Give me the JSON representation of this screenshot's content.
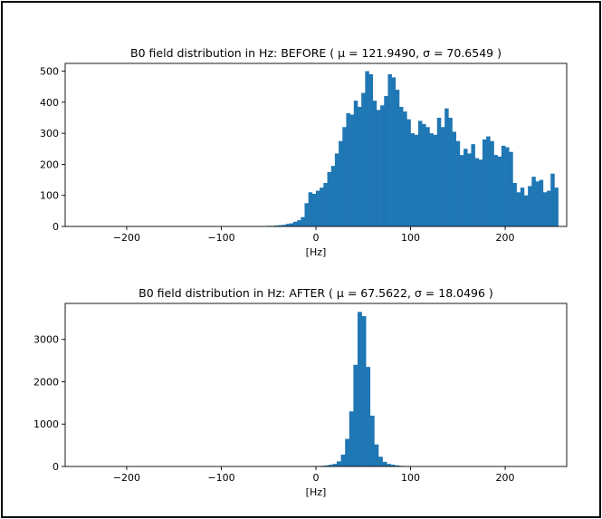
{
  "chart_data": [
    {
      "type": "bar",
      "title": "B0 field distribution in Hz: BEFORE ( μ = 121.9490, σ = 70.6549 )",
      "xlabel": "[Hz]",
      "ylabel": "",
      "xlim": [
        -265,
        265
      ],
      "ylim": [
        0,
        525
      ],
      "xticks": [
        -200,
        -100,
        0,
        100,
        200
      ],
      "xtick_labels": [
        "−200",
        "−100",
        "0",
        "100",
        "200"
      ],
      "yticks": [
        0,
        100,
        200,
        300,
        400,
        500
      ],
      "ytick_labels": [
        "0",
        "100",
        "200",
        "300",
        "400",
        "500"
      ],
      "color": "#1f77b4",
      "bin_width": 4,
      "bin_start": -60,
      "values": [
        1,
        1,
        2,
        2,
        3,
        4,
        5,
        8,
        10,
        15,
        20,
        30,
        75,
        110,
        105,
        115,
        125,
        140,
        175,
        195,
        235,
        275,
        320,
        365,
        360,
        405,
        385,
        430,
        500,
        490,
        405,
        375,
        390,
        420,
        490,
        480,
        440,
        385,
        370,
        345,
        300,
        295,
        340,
        330,
        320,
        300,
        295,
        350,
        320,
        380,
        350,
        305,
        275,
        230,
        250,
        235,
        265,
        220,
        215,
        280,
        290,
        275,
        230,
        225,
        260,
        255,
        240,
        140,
        110,
        125,
        100,
        130,
        160,
        145,
        150,
        110,
        115,
        170,
        125
      ]
    },
    {
      "type": "bar",
      "title": "B0 field distribution in Hz: AFTER ( μ = 67.5622, σ = 18.0496 )",
      "xlabel": "[Hz]",
      "ylabel": "",
      "xlim": [
        -265,
        265
      ],
      "ylim": [
        0,
        3850
      ],
      "xticks": [
        -200,
        -100,
        0,
        100,
        200
      ],
      "xtick_labels": [
        "−200",
        "−100",
        "0",
        "100",
        "200"
      ],
      "yticks": [
        0,
        1000,
        2000,
        3000
      ],
      "ytick_labels": [
        "0",
        "1000",
        "2000",
        "3000"
      ],
      "color": "#1f77b4",
      "bin_width": 4.4,
      "bin_start": 0,
      "values": [
        8,
        15,
        25,
        40,
        60,
        120,
        280,
        650,
        1300,
        2400,
        3650,
        3550,
        2350,
        1200,
        520,
        230,
        110,
        60,
        40,
        25,
        15,
        8,
        5
      ]
    }
  ]
}
